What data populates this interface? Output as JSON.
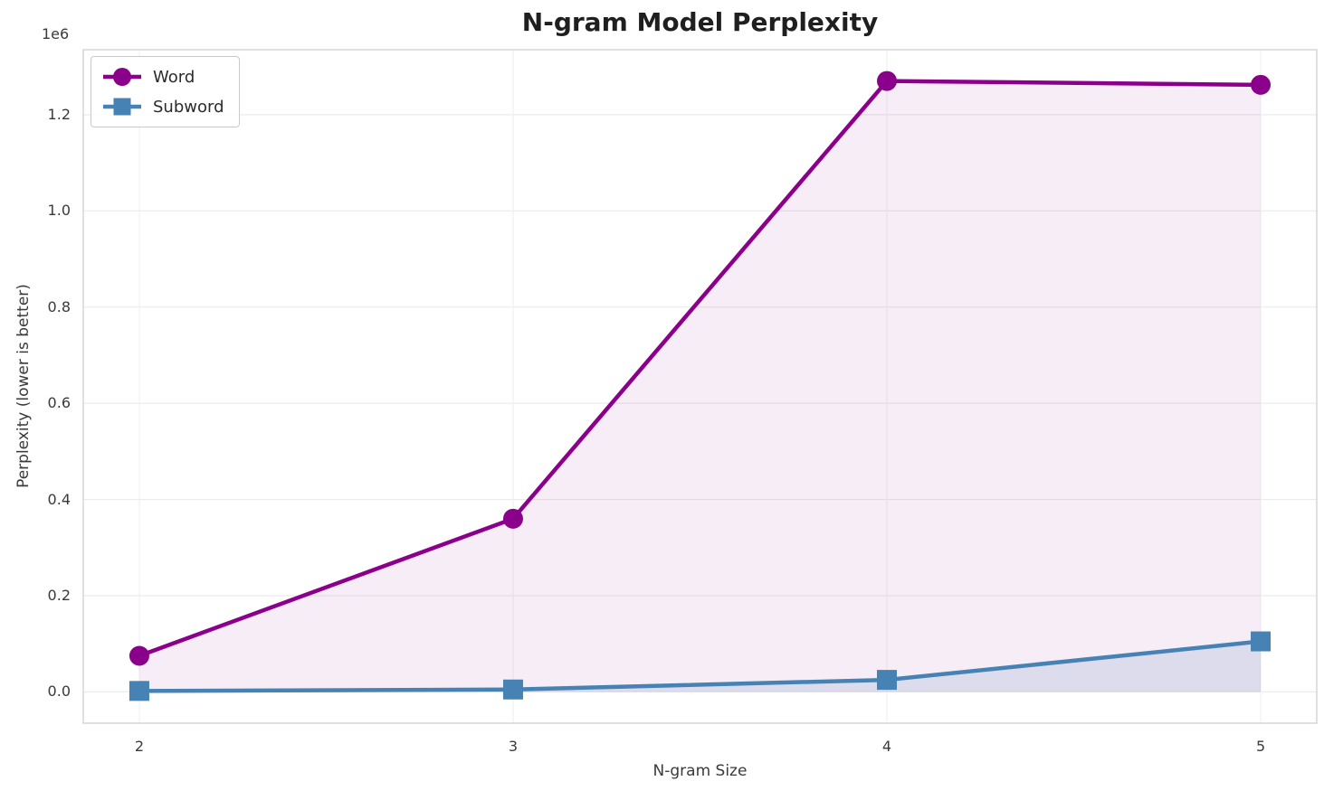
{
  "chart_data": {
    "type": "line",
    "title": "N-gram Model Perplexity",
    "xlabel": "N-gram Size",
    "ylabel": "Perplexity (lower is better)",
    "y_offset_label": "1e6",
    "x": [
      2,
      3,
      4,
      5
    ],
    "series": [
      {
        "name": "Word",
        "values": [
          75000,
          360000,
          1270000,
          1262000
        ],
        "color": "#8B008B",
        "marker": "circle",
        "fill_opacity": 0.07
      },
      {
        "name": "Subword",
        "values": [
          2000,
          5000,
          25000,
          105000
        ],
        "color": "#4682B4",
        "marker": "square",
        "fill_opacity": 0.15
      }
    ],
    "xlim": [
      1.85,
      5.15
    ],
    "ylim": [
      -65000,
      1335000
    ],
    "xticks": [
      2,
      3,
      4,
      5
    ],
    "xtick_labels": [
      "2",
      "3",
      "4",
      "5"
    ],
    "yticks": [
      0,
      200000,
      400000,
      600000,
      800000,
      1000000,
      1200000
    ],
    "ytick_labels": [
      "0.0",
      "0.2",
      "0.4",
      "0.6",
      "0.8",
      "1.0",
      "1.2"
    ],
    "grid": true,
    "legend_position": "upper left",
    "fill": "under-curve-to-zero"
  }
}
